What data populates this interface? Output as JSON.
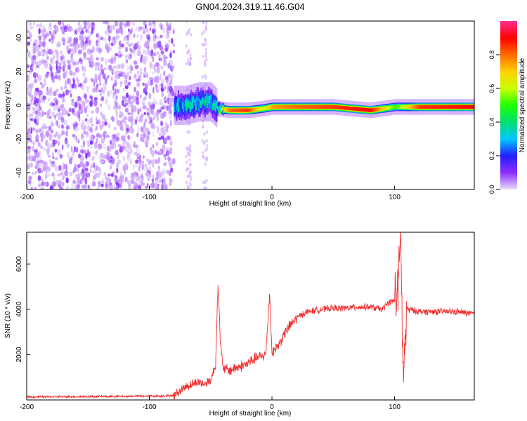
{
  "title": "GN04.2024.319.11.46.G04",
  "chart_data": [
    {
      "type": "heatmap",
      "xlabel": "Height of straight line (km)",
      "ylabel": "Frequency (Hz)",
      "xlim": [
        -200,
        165
      ],
      "ylim": [
        -50,
        50
      ],
      "x_ticks": [
        -200,
        -100,
        0,
        100
      ],
      "y_ticks": [
        -40,
        -20,
        0,
        20,
        40
      ],
      "colorbar": {
        "label": "Normalized spectral amplitude",
        "range": [
          0,
          1
        ],
        "ticks": [
          0.0,
          0.2,
          0.4,
          0.6,
          0.8
        ],
        "colors": [
          "#e8ddf8",
          "#8d2dff",
          "#2020ff",
          "#00c8ff",
          "#00e070",
          "#20ff00",
          "#c8ff00",
          "#ffd000",
          "#ff6a00",
          "#ff0000",
          "#ff2f90"
        ]
      },
      "noise_region": {
        "x_range": [
          -200,
          -80
        ],
        "note_markers_x": [
          -68,
          -55
        ]
      },
      "signal_trace": [
        {
          "x": -80,
          "freq": 0,
          "amp": 0.35
        },
        {
          "x": -70,
          "freq": 0,
          "amp": 0.4
        },
        {
          "x": -60,
          "freq": 2,
          "amp": 0.4
        },
        {
          "x": -50,
          "freq": 2,
          "amp": 0.35
        },
        {
          "x": -45,
          "freq": -2,
          "amp": 0.5
        },
        {
          "x": -35,
          "freq": -3,
          "amp": 0.8
        },
        {
          "x": -20,
          "freq": -3,
          "amp": 0.85
        },
        {
          "x": -8,
          "freq": -2,
          "amp": 0.6
        },
        {
          "x": 0,
          "freq": -1,
          "amp": 0.75
        },
        {
          "x": 20,
          "freq": -1,
          "amp": 0.8
        },
        {
          "x": 50,
          "freq": -1,
          "amp": 0.85
        },
        {
          "x": 80,
          "freq": -3,
          "amp": 0.9
        },
        {
          "x": 100,
          "freq": -1,
          "amp": 0.5
        },
        {
          "x": 120,
          "freq": -1,
          "amp": 0.85
        },
        {
          "x": 165,
          "freq": -1,
          "amp": 0.9
        }
      ]
    },
    {
      "type": "line",
      "xlabel": "Height of straight line (km)",
      "ylabel": "SNR (10 * v/v)",
      "xlim": [
        -200,
        165
      ],
      "ylim": [
        0,
        7400
      ],
      "x_ticks": [
        -200,
        -100,
        0,
        100
      ],
      "y_ticks": [
        2000,
        4000,
        6000
      ],
      "series": [
        {
          "color": "#ee3030",
          "x": [
            -200,
            -180,
            -150,
            -120,
            -100,
            -90,
            -80,
            -75,
            -70,
            -65,
            -60,
            -55,
            -50,
            -46,
            -44,
            -42,
            -40,
            -35,
            -30,
            -25,
            -20,
            -15,
            -10,
            -5,
            -2,
            0,
            5,
            10,
            15,
            20,
            25,
            30,
            40,
            50,
            60,
            70,
            80,
            90,
            95,
            100,
            103,
            105,
            107,
            110,
            120,
            130,
            140,
            150,
            165
          ],
          "y": [
            130,
            140,
            150,
            160,
            170,
            175,
            200,
            400,
            600,
            700,
            800,
            700,
            900,
            1500,
            5200,
            2500,
            1400,
            1300,
            1400,
            1500,
            1600,
            1800,
            1900,
            2000,
            4700,
            2100,
            2400,
            2900,
            3300,
            3600,
            3800,
            3900,
            4000,
            4050,
            4050,
            4100,
            4100,
            4000,
            4300,
            4400,
            4900,
            7300,
            900,
            4000,
            3900,
            3900,
            3900,
            3900,
            3800
          ]
        }
      ]
    }
  ]
}
